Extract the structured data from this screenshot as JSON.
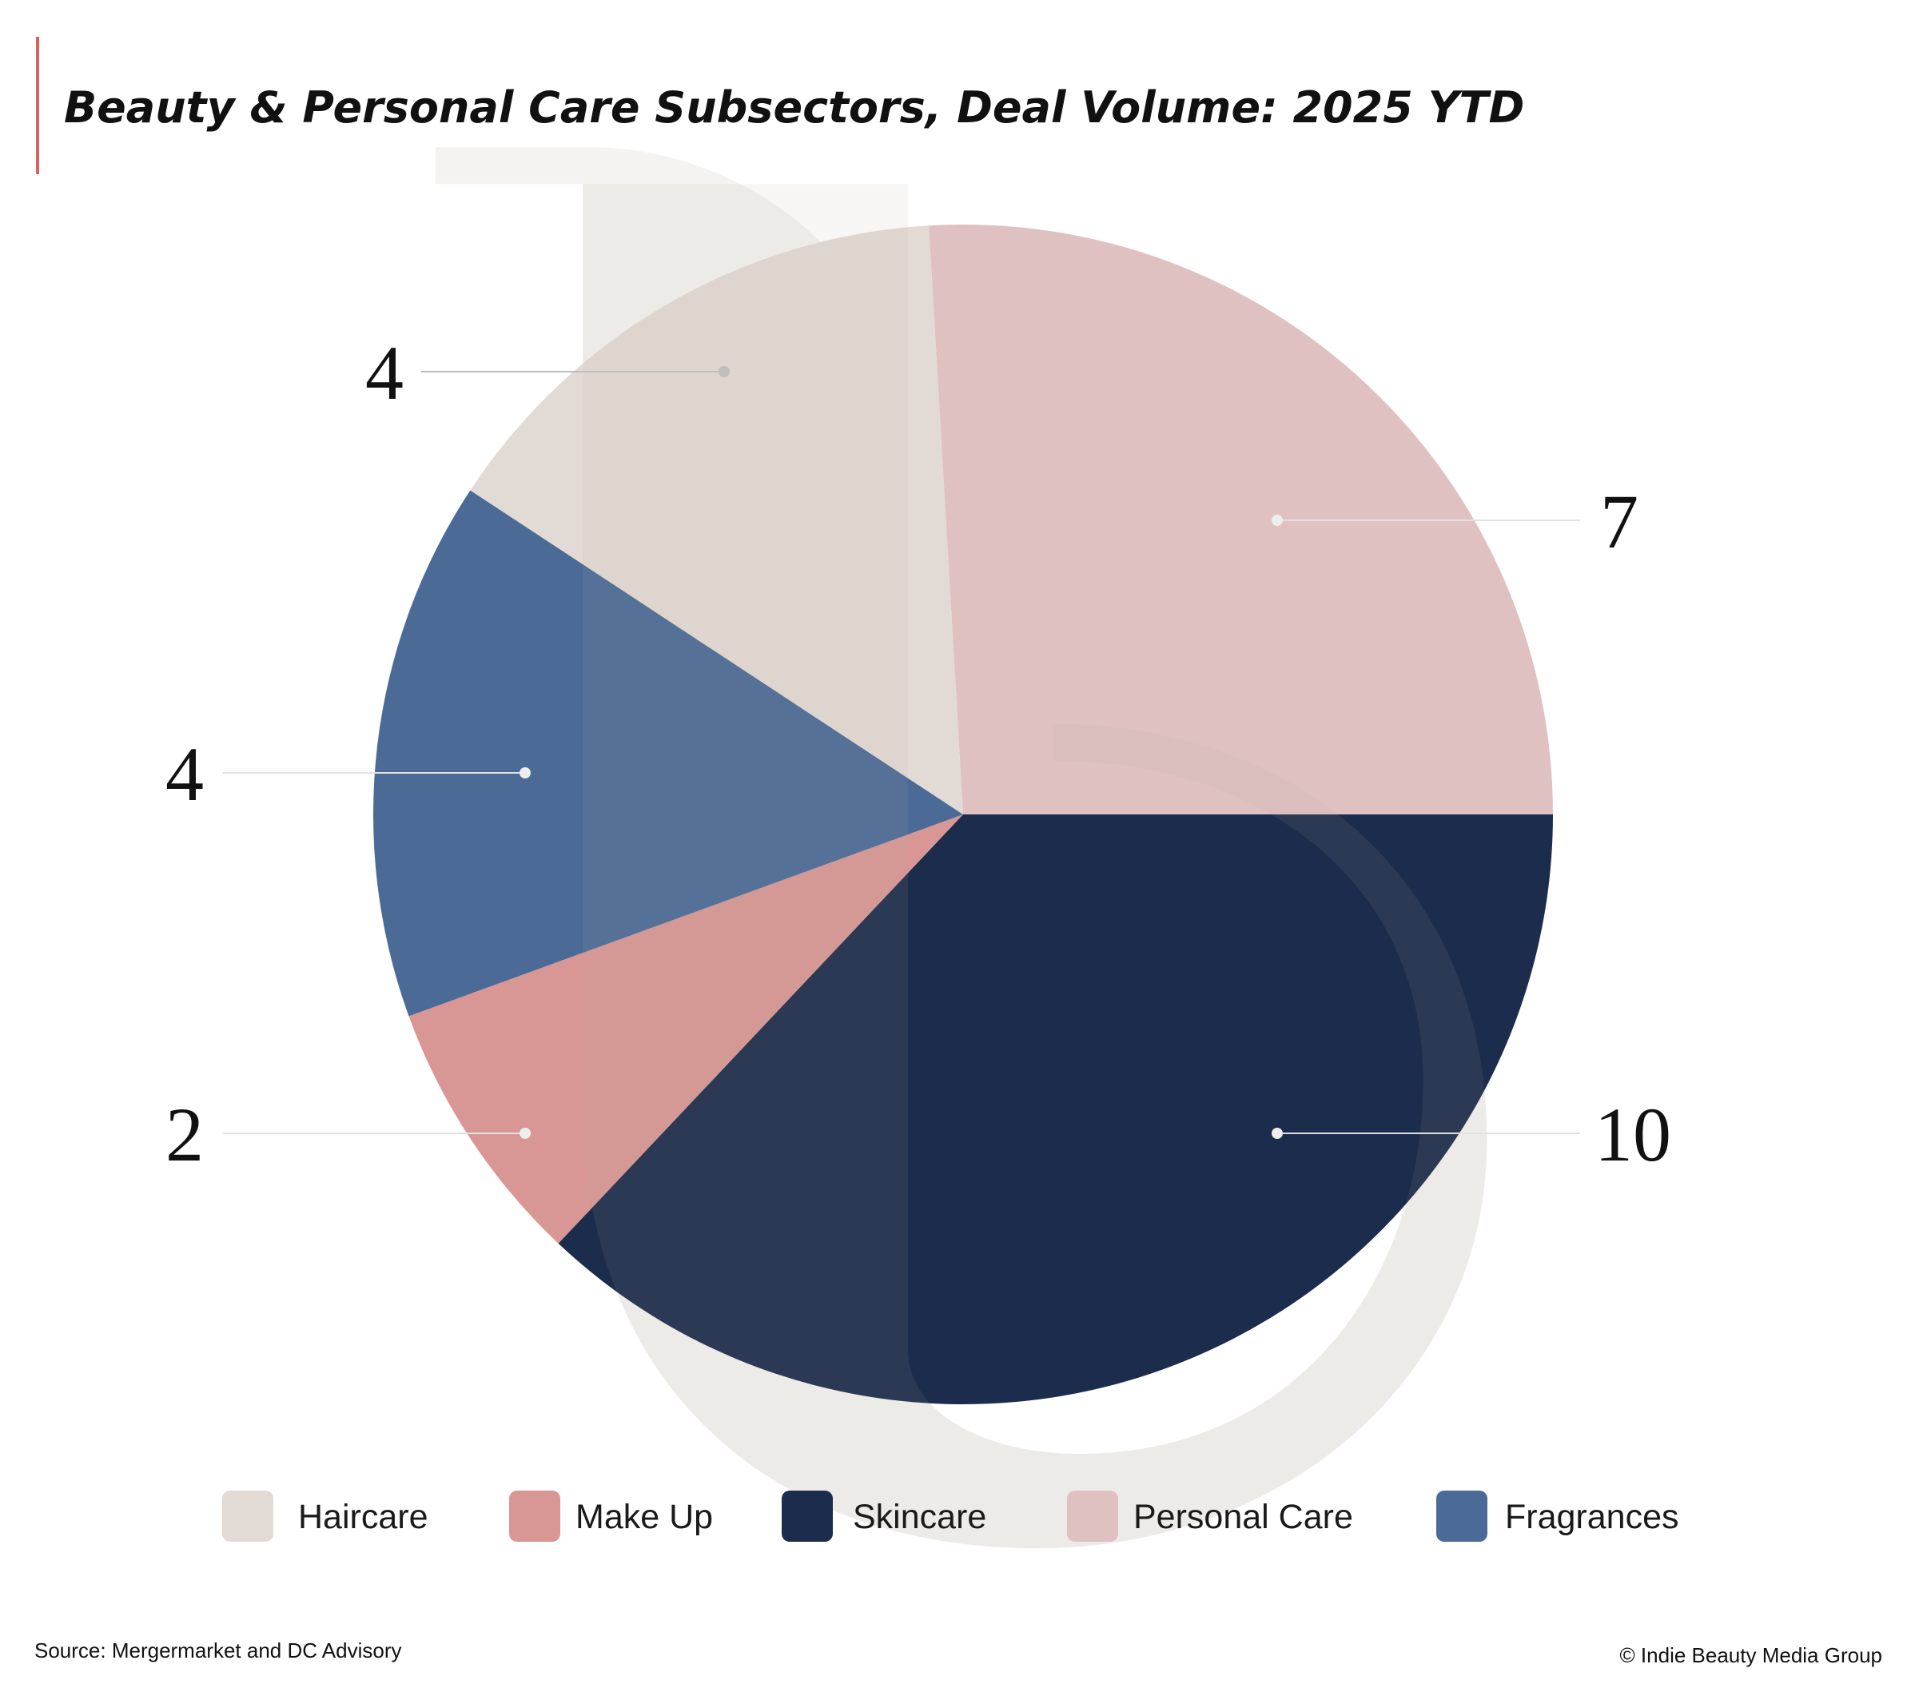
{
  "chart_data": {
    "type": "pie",
    "title": "Beauty & Personal Care Subsectors, Deal Volume: 2025 YTD",
    "slices": [
      {
        "name": "Personal Care",
        "value": 7,
        "color": "#e0c1c2"
      },
      {
        "name": "Skincare",
        "value": 10,
        "color": "#1c2c4c"
      },
      {
        "name": "Make Up",
        "value": 2,
        "color": "#d89694"
      },
      {
        "name": "Fragrances",
        "value": 4,
        "color": "#4b6b96"
      },
      {
        "name": "Haircare",
        "value": 4,
        "color": "#e2dad4"
      }
    ],
    "data_labels": [
      "7",
      "10",
      "2",
      "4",
      "4"
    ],
    "legend": [
      "Haircare",
      "Make Up",
      "Skincare",
      "Personal Care",
      "Fragrances"
    ],
    "legend_colors": [
      "#e2dad4",
      "#d89694",
      "#1c2c4c",
      "#e0c1c2",
      "#4b6b96"
    ],
    "legend_placement": "bottom"
  },
  "footer": {
    "source": "Source: Mergermarket and DC Advisory",
    "copyright": "© Indie Beauty Media Group"
  },
  "accent_color": "#d9625e"
}
